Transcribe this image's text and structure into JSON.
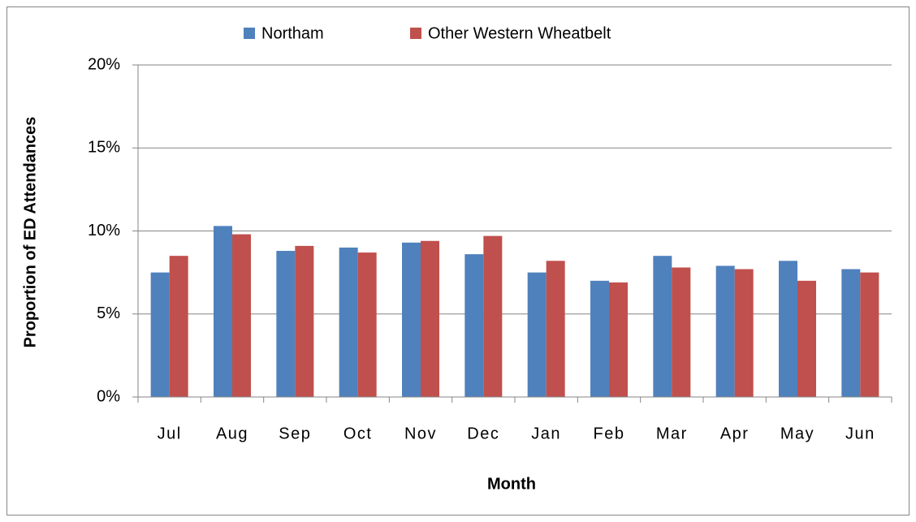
{
  "chart_data": {
    "type": "bar",
    "x_label": "Month",
    "y_label": "Proportion of ED Attendances",
    "categories": [
      "Jul",
      "Aug",
      "Sep",
      "Oct",
      "Nov",
      "Dec",
      "Jan",
      "Feb",
      "Mar",
      "Apr",
      "May",
      "Jun"
    ],
    "series": [
      {
        "name": "Northam",
        "color": "#4f81bd",
        "values": [
          7.5,
          10.3,
          8.8,
          9.0,
          9.3,
          8.6,
          7.5,
          7.0,
          8.5,
          7.9,
          8.2,
          7.7
        ]
      },
      {
        "name": "Other Western Wheatbelt",
        "color": "#c0504d",
        "values": [
          8.5,
          9.8,
          9.1,
          8.7,
          9.4,
          9.7,
          8.2,
          6.9,
          7.8,
          7.7,
          7.0,
          7.5
        ]
      }
    ],
    "ylim": [
      0,
      20
    ],
    "yticks": [
      {
        "value": 0,
        "label": "0%"
      },
      {
        "value": 5,
        "label": "5%"
      },
      {
        "value": 10,
        "label": "10%"
      },
      {
        "value": 15,
        "label": "15%"
      },
      {
        "value": 20,
        "label": "20%"
      }
    ],
    "grid": true,
    "legend": "top"
  }
}
